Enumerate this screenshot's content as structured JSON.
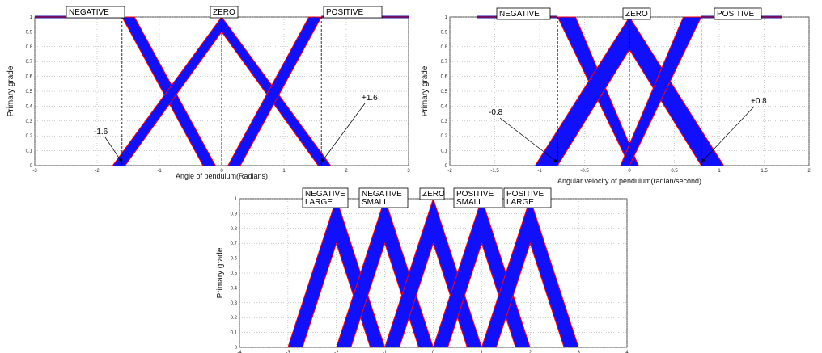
{
  "chart_data": [
    {
      "type": "line",
      "title": "",
      "xlabel": "Angle of pendulum(Radians)",
      "ylabel": "Primary grade",
      "xlim": [
        -3,
        3
      ],
      "ylim": [
        0,
        1
      ],
      "xticks": [
        -3,
        -2,
        -1,
        0,
        1,
        2,
        3
      ],
      "yticks": [
        0,
        0.1,
        0.2,
        0.3,
        0.4,
        0.5,
        0.6,
        0.7,
        0.8,
        0.9,
        1
      ],
      "grid": true,
      "colors": {
        "band": "#1010ff",
        "edge": "#ff0000",
        "shoulder": "#1a1aa0"
      },
      "membership_functions": [
        {
          "label": "NEGATIVE",
          "upper": [
            [
              -3,
              1
            ],
            [
              -1.6,
              1
            ],
            [
              -0.3,
              0
            ]
          ],
          "lower": [
            [
              -3,
              1
            ],
            [
              -1.4,
              1
            ],
            [
              -0.1,
              0
            ]
          ]
        },
        {
          "label": "ZERO",
          "upper": [
            [
              -1.75,
              0
            ],
            [
              0,
              1
            ],
            [
              1.75,
              0
            ]
          ],
          "lower": [
            [
              -1.55,
              0
            ],
            [
              0,
              0.9
            ],
            [
              1.55,
              0
            ]
          ]
        },
        {
          "label": "POSITIVE",
          "upper": [
            [
              0.3,
              0
            ],
            [
              1.6,
              1
            ],
            [
              3,
              1
            ]
          ],
          "lower": [
            [
              0.1,
              0
            ],
            [
              1.4,
              1
            ],
            [
              3,
              1
            ]
          ]
        }
      ],
      "annotations": [
        {
          "text": "-1.6",
          "x": -1.6
        },
        {
          "text": "+1.6",
          "x": 1.6
        }
      ]
    },
    {
      "type": "line",
      "title": "",
      "xlabel": "Angular velocity of pendulum(radian/second)",
      "ylabel": "Primary grade",
      "xlim": [
        -2,
        2
      ],
      "ylim": [
        0,
        1
      ],
      "xticks": [
        -2,
        -1.5,
        -1,
        -0.5,
        0,
        0.5,
        1,
        1.5,
        2
      ],
      "yticks": [
        0,
        0.1,
        0.2,
        0.3,
        0.4,
        0.5,
        0.6,
        0.7,
        0.8,
        0.9,
        1
      ],
      "grid": true,
      "colors": {
        "band": "#1010ff",
        "edge": "#ff0000",
        "shoulder": "#1a1aa0"
      },
      "membership_functions": [
        {
          "label": "NEGATIVE",
          "upper": [
            [
              -1.7,
              1
            ],
            [
              -0.8,
              1
            ],
            [
              0,
              0
            ]
          ],
          "lower": [
            [
              -1.7,
              1
            ],
            [
              -0.6,
              1
            ],
            [
              0.1,
              0
            ]
          ]
        },
        {
          "label": "ZERO",
          "upper": [
            [
              -1.05,
              0
            ],
            [
              0,
              1
            ],
            [
              1.05,
              0
            ]
          ],
          "lower": [
            [
              -0.8,
              0
            ],
            [
              0,
              0.78
            ],
            [
              0.8,
              0
            ]
          ]
        },
        {
          "label": "POSITIVE",
          "upper": [
            [
              0,
              0
            ],
            [
              0.8,
              1
            ],
            [
              1.7,
              1
            ]
          ],
          "lower": [
            [
              -0.1,
              0
            ],
            [
              0.6,
              1
            ],
            [
              1.7,
              1
            ]
          ]
        }
      ],
      "annotations": [
        {
          "text": "-0.8",
          "x": -0.8
        },
        {
          "text": "+0.8",
          "x": 0.8
        }
      ]
    },
    {
      "type": "line",
      "title": "",
      "xlabel": "",
      "ylabel": "Primary grade",
      "xlim": [
        -4,
        4
      ],
      "ylim": [
        0,
        1
      ],
      "xticks": [
        -4,
        -3,
        -2,
        -1,
        0,
        1,
        2,
        3,
        4
      ],
      "yticks": [
        0,
        0.1,
        0.2,
        0.3,
        0.4,
        0.5,
        0.6,
        0.7,
        0.8,
        0.9,
        1
      ],
      "grid": true,
      "colors": {
        "band": "#1010ff",
        "edge": "#ff0000",
        "shoulder": "#1a1aa0"
      },
      "membership_functions": [
        {
          "label": "NEGATIVE\nLARGE",
          "upper": [
            [
              -3,
              0
            ],
            [
              -2,
              1
            ],
            [
              -1,
              0
            ]
          ],
          "lower": [
            [
              -2.7,
              0
            ],
            [
              -2,
              0.7
            ],
            [
              -1.3,
              0
            ]
          ]
        },
        {
          "label": "NEGATIVE\nSMALL",
          "upper": [
            [
              -2,
              0
            ],
            [
              -1,
              1
            ],
            [
              0,
              0
            ]
          ],
          "lower": [
            [
              -1.7,
              0
            ],
            [
              -1,
              0.7
            ],
            [
              -0.3,
              0
            ]
          ]
        },
        {
          "label": "ZERO",
          "upper": [
            [
              -1,
              0
            ],
            [
              0,
              1
            ],
            [
              1,
              0
            ]
          ],
          "lower": [
            [
              -0.7,
              0
            ],
            [
              0,
              0.7
            ],
            [
              0.7,
              0
            ]
          ]
        },
        {
          "label": "POSITIVE\nSMALL",
          "upper": [
            [
              0,
              0
            ],
            [
              1,
              1
            ],
            [
              2,
              0
            ]
          ],
          "lower": [
            [
              0.3,
              0
            ],
            [
              1,
              0.7
            ],
            [
              1.7,
              0
            ]
          ]
        },
        {
          "label": "POSITIVE\nLARGE",
          "upper": [
            [
              1,
              0
            ],
            [
              2,
              1
            ],
            [
              3,
              0
            ]
          ],
          "lower": [
            [
              1.3,
              0
            ],
            [
              2,
              0.7
            ],
            [
              2.7,
              0
            ]
          ]
        }
      ],
      "annotations": []
    }
  ]
}
